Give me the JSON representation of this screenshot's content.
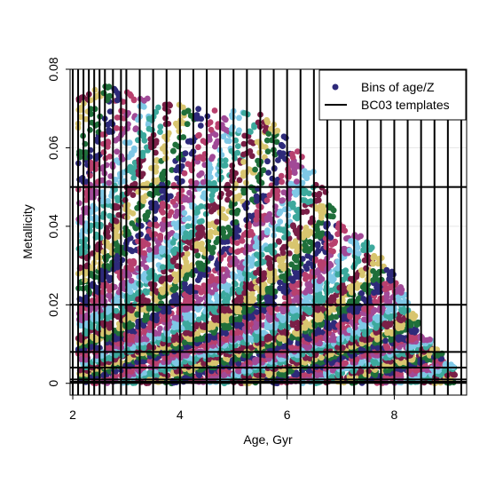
{
  "chart_data": {
    "type": "scatter",
    "xlabel": "Age, Gyr",
    "ylabel": "Metallicity",
    "xlim": [
      1.95,
      9.35
    ],
    "ylim": [
      -0.003,
      0.08
    ],
    "x_ticks": [
      2,
      4,
      6,
      8
    ],
    "y_ticks": [
      0,
      0.02,
      0.04,
      0.06,
      0.08
    ],
    "x_tick_labels": [
      "2",
      "4",
      "6",
      "8"
    ],
    "y_tick_labels": [
      "0",
      "0.02",
      "0.04",
      "0.06",
      "0.08"
    ],
    "grid": true,
    "legend_position": "top-right",
    "legend": [
      {
        "label": "Bins of age/Z",
        "marker": "point",
        "color": "#2e2a7a"
      },
      {
        "label": "BC03 templates",
        "marker": "line",
        "color": "#000000"
      }
    ],
    "template_ages": [
      2.0,
      2.1,
      2.2,
      2.3,
      2.4,
      2.5,
      2.6,
      2.75,
      2.9,
      3.0,
      3.25,
      3.5,
      3.75,
      4.0,
      4.25,
      4.5,
      4.75,
      5.0,
      5.25,
      5.5,
      5.75,
      6.0,
      6.25,
      6.5,
      6.75,
      7.0,
      7.25,
      7.5,
      7.75,
      8.0,
      8.25,
      8.5,
      8.75,
      9.0,
      9.25
    ],
    "template_metallicities": [
      0.0001,
      0.0004,
      0.001,
      0.004,
      0.008,
      0.02,
      0.05
    ],
    "bin_colors": [
      "#2e2a7a",
      "#7fc8e6",
      "#d8c56f",
      "#b8406e",
      "#3da99d",
      "#1f6f3a",
      "#a14a97",
      "#7a1f47"
    ],
    "envelope": {
      "x": [
        2.2,
        2.5,
        3.0,
        3.5,
        4.0,
        4.5,
        5.0,
        5.5,
        6.0,
        6.5,
        7.0,
        7.5,
        8.0,
        8.5,
        9.0,
        9.2
      ],
      "ymax": [
        0.072,
        0.075,
        0.074,
        0.071,
        0.07,
        0.069,
        0.069,
        0.068,
        0.063,
        0.053,
        0.041,
        0.035,
        0.028,
        0.013,
        0.005,
        0.002
      ]
    }
  }
}
